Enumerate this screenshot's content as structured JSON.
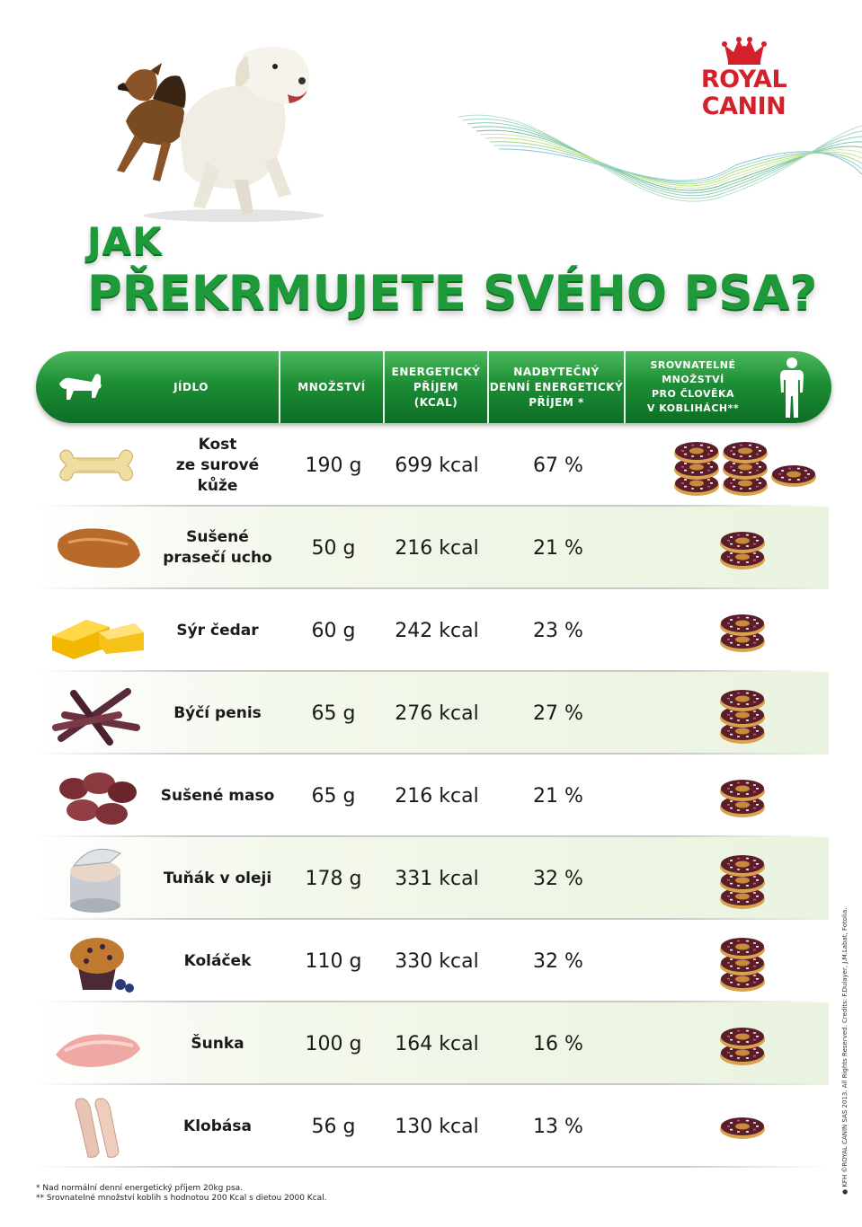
{
  "brand": {
    "name": "ROYAL CANIN",
    "color": "#d3202a"
  },
  "title": {
    "line1": "JAK",
    "line2": "PŘEKRMUJETE SVÉHO PSA?",
    "color": "#1f9a3a"
  },
  "header": {
    "food": "JÍDLO",
    "amount": "MNOŽSTVÍ",
    "energy": "ENERGETICKÝ\nPŘÍJEM\n(KCAL)",
    "excess": "NADBYTEČNÝ\nDENNÍ ENERGETICKÝ\nPŘÍJEM *",
    "human": "SROVNATELNÉ\nMNOŽSTVÍ\nPRO ČLOVĚKA\nV KOBLIHÁCH**",
    "icons": [
      "dog-icon",
      "human-figure-icon"
    ]
  },
  "rows": [
    {
      "name": "Kost\nze surové\nkůže",
      "amount": "190 g",
      "kcal": "699 kcal",
      "excess": "67 %",
      "donuts": 7,
      "image": "rawhide-bone"
    },
    {
      "name": "Sušené\nprasečí ucho",
      "amount": "50 g",
      "kcal": "216 kcal",
      "excess": "21 %",
      "donuts": 2,
      "image": "pig-ear"
    },
    {
      "name": "Sýr čedar",
      "amount": "60 g",
      "kcal": "242 kcal",
      "excess": "23 %",
      "donuts": 2,
      "image": "cheddar"
    },
    {
      "name": "Býčí penis",
      "amount": "65 g",
      "kcal": "276 kcal",
      "excess": "27 %",
      "donuts": 3,
      "image": "bully-sticks"
    },
    {
      "name": "Sušené maso",
      "amount": "65 g",
      "kcal": "216 kcal",
      "excess": "21 %",
      "donuts": 2,
      "image": "dried-meat"
    },
    {
      "name": "Tuňák v oleji",
      "amount": "178 g",
      "kcal": "331 kcal",
      "excess": "32 %",
      "donuts": 3,
      "image": "tuna-can"
    },
    {
      "name": "Koláček",
      "amount": "110 g",
      "kcal": "330 kcal",
      "excess": "32 %",
      "donuts": 3,
      "image": "muffin"
    },
    {
      "name": "Šunka",
      "amount": "100 g",
      "kcal": "164 kcal",
      "excess": "16 %",
      "donuts": 2,
      "image": "ham"
    },
    {
      "name": "Klobása",
      "amount": "56 g",
      "kcal": "130 kcal",
      "excess": "13 %",
      "donuts": 1,
      "image": "sausage"
    }
  ],
  "notes": {
    "n1": "* Nad normální denní energetický příjem 20kg psa.",
    "n2": "** Srovnatelné množství koblih s hodnotou 200 Kcal s dietou 2000 Kcal."
  },
  "credits": "● KFH ©ROYAL CANIN SAS 2013. All Rights Reserved. Credits: F.Dulayer, J.M.Labat, Fotolia."
}
